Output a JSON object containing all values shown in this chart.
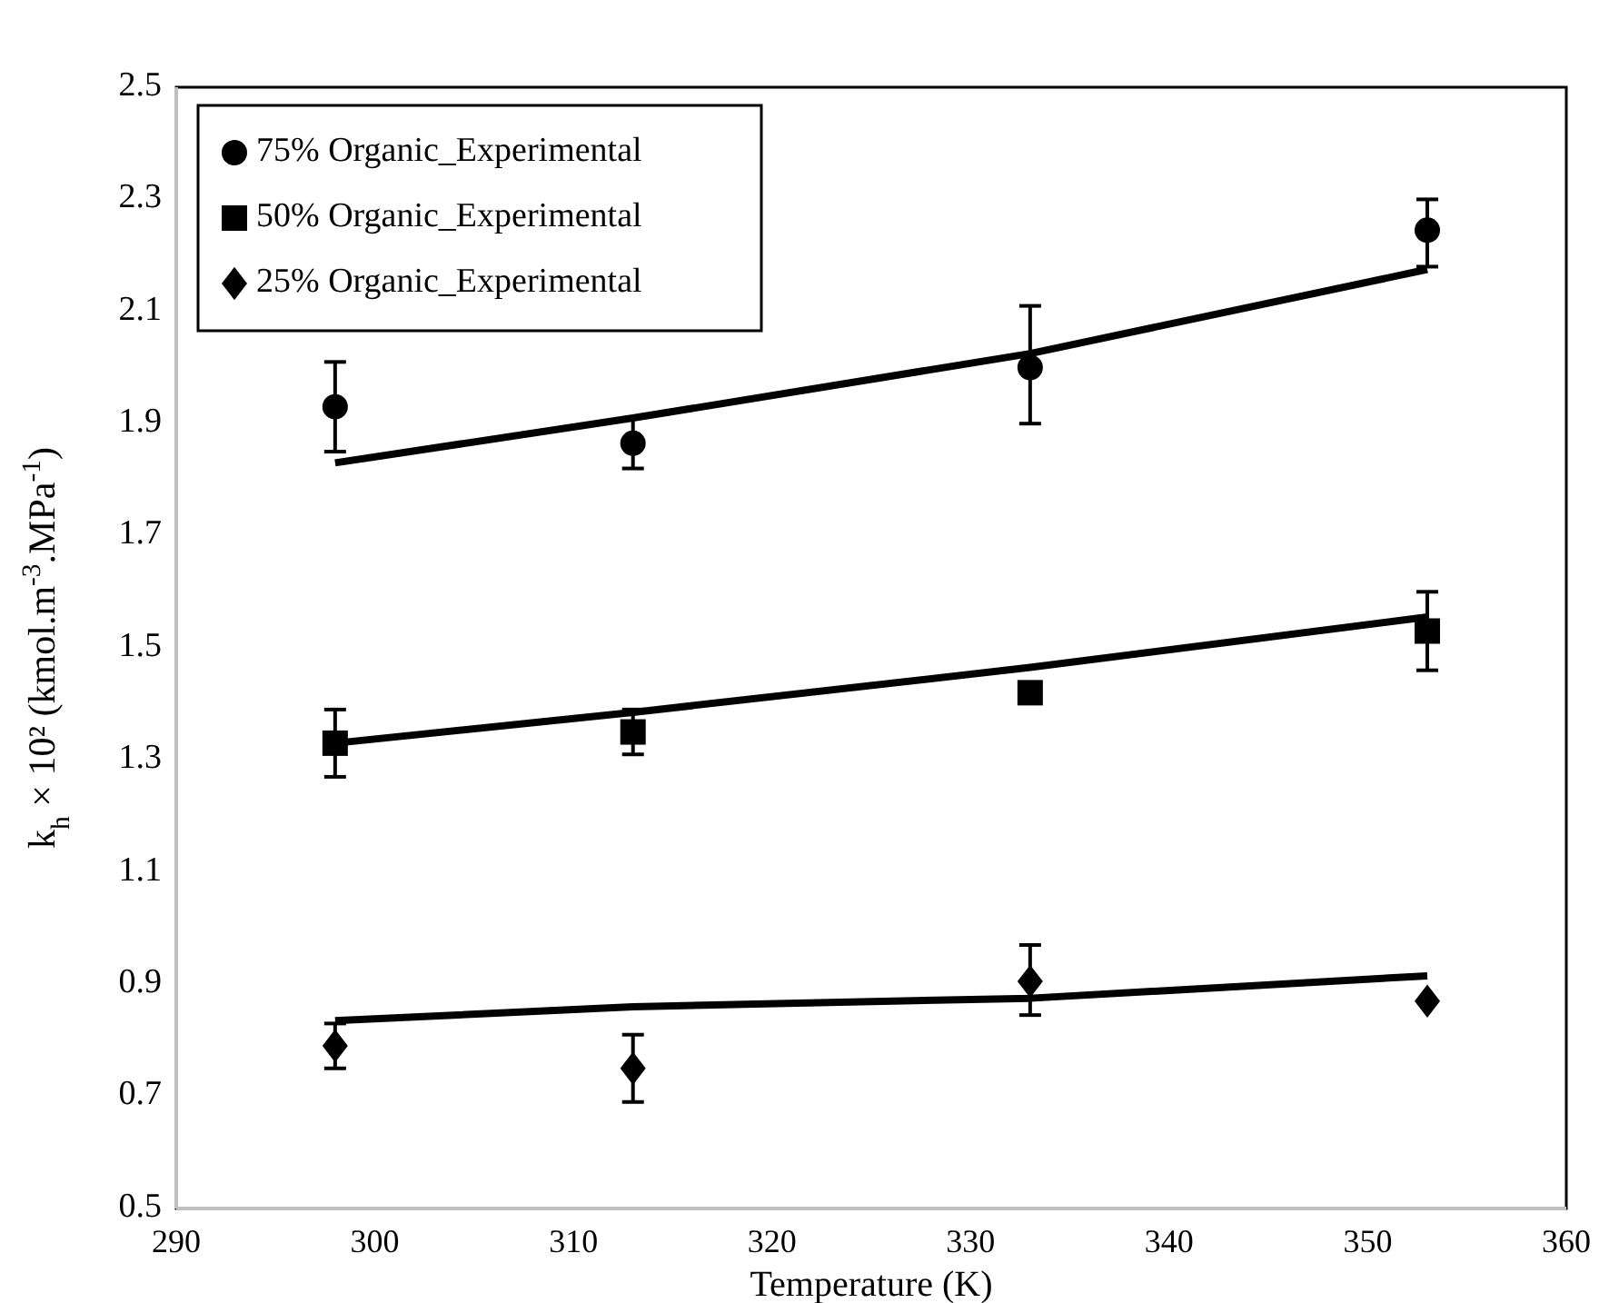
{
  "chart_data": {
    "type": "scatter",
    "xlabel": "Temperature (K)",
    "ylabel": "k$_{h}$ × 10² (kmol.m$^{-3}$.MPa$^{-1}$)",
    "xlim": [
      290,
      360
    ],
    "xticks": [
      290,
      300,
      310,
      320,
      330,
      340,
      350,
      360
    ],
    "ylim": [
      0.5,
      2.5
    ],
    "yticks": [
      {
        "value": 0.5,
        "label": "0.5"
      },
      {
        "value": 0.7,
        "label": "0.7"
      },
      {
        "value": 0.9,
        "label": "0.9"
      },
      {
        "value": 1.1,
        "label": "1.1"
      },
      {
        "value": 1.3,
        "label": "1.3"
      },
      {
        "value": 1.5,
        "label": "1.5"
      },
      {
        "value": 1.7,
        "label": "1.7"
      },
      {
        "value": 1.9,
        "label": "1.9"
      },
      {
        "value": 2.1,
        "label": "2.1"
      },
      {
        "value": 2.3,
        "label": "2.3"
      },
      {
        "value": 2.5,
        "label": "2.5"
      }
    ],
    "grid": false,
    "legend": "top left",
    "series": [
      {
        "name": "75% Organic_Experimental",
        "marker": "circle",
        "color": "#000000",
        "x": [
          298,
          313,
          333,
          353
        ],
        "values": [
          1.93,
          1.865,
          2.0,
          2.245
        ],
        "errors": [
          [
            1.85,
            2.01
          ],
          [
            1.82,
            1.91
          ],
          [
            1.9,
            2.11
          ],
          [
            2.18,
            2.3
          ]
        ]
      },
      {
        "name": "50% Organic_Experimental",
        "marker": "square",
        "color": "#000000",
        "x": [
          298,
          313,
          333,
          353
        ],
        "values": [
          1.33,
          1.35,
          1.42,
          1.53
        ],
        "errors": [
          [
            1.27,
            1.39
          ],
          [
            1.31,
            1.39
          ],
          null,
          [
            1.46,
            1.6
          ]
        ]
      },
      {
        "name": "25% Organic_Experimental",
        "marker": "diamond",
        "color": "#000000",
        "x": [
          298,
          313,
          333,
          353
        ],
        "values": [
          0.79,
          0.75,
          0.905,
          0.87
        ],
        "errors": [
          [
            0.75,
            0.83
          ],
          [
            0.69,
            0.81
          ],
          [
            0.845,
            0.97
          ],
          null
        ]
      },
      {
        "type": "line",
        "color": "#000000",
        "x": [
          298,
          313,
          333,
          353
        ],
        "values": [
          1.83,
          1.91,
          2.025,
          2.175
        ]
      },
      {
        "type": "line",
        "color": "#000000",
        "x": [
          298,
          313,
          333,
          353
        ],
        "values": [
          1.33,
          1.385,
          1.465,
          1.555
        ]
      },
      {
        "type": "line",
        "color": "#000000",
        "x": [
          298,
          313,
          333,
          353
        ],
        "values": [
          0.835,
          0.86,
          0.875,
          0.915
        ]
      }
    ]
  }
}
